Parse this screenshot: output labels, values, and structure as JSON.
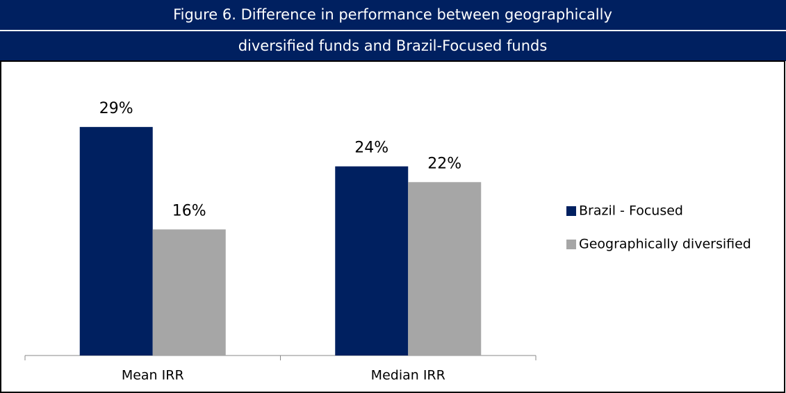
{
  "chart_data": {
    "type": "bar",
    "title": [
      "Figure 6. Difference in performance between geographically",
      "diversified funds and Brazil-Focused funds"
    ],
    "categories": [
      "Mean IRR",
      "Median IRR"
    ],
    "series": [
      {
        "name": "Brazil - Focused",
        "color": "#002060",
        "values": [
          29,
          24
        ],
        "value_labels": [
          "29%",
          "24%"
        ]
      },
      {
        "name": "Geographically diversified",
        "color": "#a6a6a6",
        "values": [
          16,
          22
        ],
        "value_labels": [
          "16%",
          "22%"
        ]
      }
    ],
    "legend": "right"
  }
}
